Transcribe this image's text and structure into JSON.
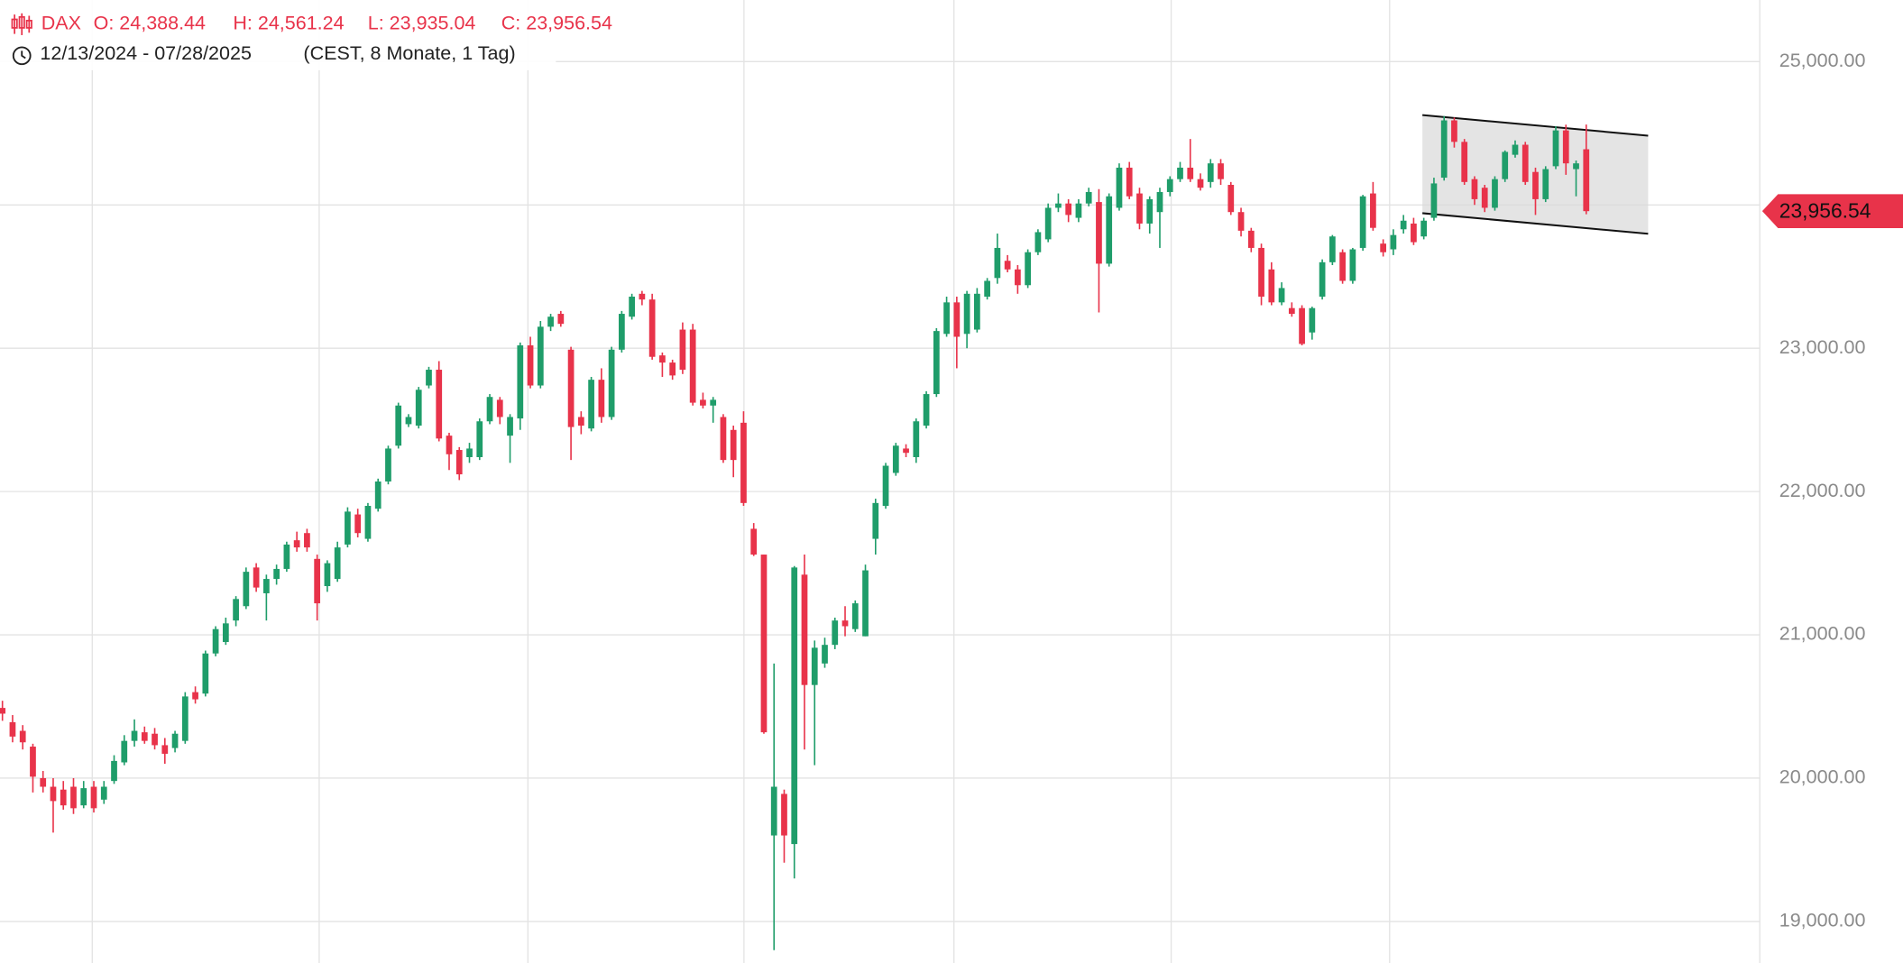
{
  "chart_data": {
    "type": "candlestick",
    "symbol": "DAX",
    "ohlc_labels": [
      "O: 24,388.44",
      "H: 24,561.24",
      "L: 23,935.04",
      "C: 23,956.54"
    ],
    "range_label": "12/13/2024 - 07/28/2025",
    "range_note": "(CEST, 8 Monate, 1 Tag)",
    "last_price": {
      "value": 23956.54,
      "label": "23,956.54"
    },
    "up_color": "#1f9d6a",
    "down_color": "#e8334a",
    "grid": true,
    "ylim": [
      18710,
      25430
    ],
    "yticks": [
      {
        "value": 19000,
        "label": "19,000.00"
      },
      {
        "value": 20000,
        "label": "20,000.00"
      },
      {
        "value": 21000,
        "label": "21,000.00"
      },
      {
        "value": 22000,
        "label": "22,000.00"
      },
      {
        "value": 23000,
        "label": "23,000.00"
      },
      {
        "value": 24000,
        "label": "24,000.00"
      },
      {
        "value": 25000,
        "label": "25,000.00"
      }
    ],
    "open": [
      20490,
      20390,
      20330,
      20220,
      20000,
      19940,
      19920,
      19940,
      19810,
      19940,
      19850,
      19980,
      20110,
      20260,
      20320,
      20310,
      20230,
      20210,
      20260,
      20600,
      20590,
      20870,
      20950,
      21100,
      21200,
      21470,
      21290,
      21390,
      21460,
      21660,
      21710,
      21530,
      21340,
      21390,
      21630,
      21840,
      21670,
      21880,
      22070,
      22320,
      22470,
      22460,
      22740,
      22850,
      22390,
      22290,
      22240,
      22240,
      22490,
      22640,
      22390,
      22510,
      23020,
      22740,
      23150,
      23240,
      22990,
      22520,
      22440,
      22780,
      22520,
      22990,
      23220,
      23380,
      23340,
      22950,
      22900,
      23130,
      23130,
      22640,
      22600,
      22520,
      22430,
      22480,
      21740,
      21560,
      19600,
      19890,
      19540,
      21420,
      20650,
      20800,
      20930,
      21100,
      21040,
      20990,
      21670,
      21900,
      22130,
      22300,
      22240,
      22460,
      22680,
      23100,
      23320,
      23100,
      23130,
      23360,
      23490,
      23610,
      23550,
      23440,
      23670,
      23760,
      23980,
      24010,
      23910,
      24010,
      24020,
      23590,
      23980,
      24260,
      24080,
      23870,
      23950,
      24090,
      24180,
      24260,
      24180,
      24160,
      24290,
      24140,
      23950,
      23820,
      23700,
      23550,
      23320,
      23280,
      23280,
      23110,
      23360,
      23600,
      23670,
      23470,
      23700,
      24080,
      23730,
      23690,
      23830,
      23870,
      23780,
      23910,
      24190,
      24590,
      24440,
      24180,
      24120,
      23980,
      24180,
      24350,
      24420,
      24230,
      24040,
      24270,
      24520,
      24250,
      24388.44
    ],
    "high": [
      20540,
      20440,
      20370,
      20240,
      20050,
      20000,
      19980,
      20000,
      19980,
      19980,
      19980,
      20160,
      20300,
      20410,
      20360,
      20350,
      20280,
      20330,
      20600,
      20640,
      20890,
      21060,
      21120,
      21270,
      21470,
      21500,
      21420,
      21490,
      21650,
      21720,
      21740,
      21560,
      21520,
      21650,
      21890,
      21880,
      21920,
      22090,
      22320,
      22620,
      22540,
      22730,
      22870,
      22910,
      22410,
      22310,
      22340,
      22510,
      22680,
      22660,
      22540,
      23040,
      23080,
      23190,
      23240,
      23260,
      23010,
      22560,
      22800,
      22860,
      23010,
      23260,
      23380,
      23400,
      23380,
      22970,
      22920,
      23180,
      23170,
      22690,
      22660,
      22540,
      22460,
      22560,
      21780,
      21560,
      20800,
      19920,
      21480,
      21560,
      20960,
      20980,
      21120,
      21200,
      21240,
      21490,
      21950,
      22200,
      22340,
      22330,
      22510,
      22700,
      23140,
      23360,
      23360,
      23400,
      23420,
      23490,
      23800,
      23650,
      23580,
      23690,
      23830,
      24010,
      24080,
      24040,
      24040,
      24120,
      24110,
      24080,
      24290,
      24300,
      24120,
      24060,
      24120,
      24200,
      24300,
      24460,
      24220,
      24320,
      24320,
      24160,
      23980,
      23840,
      23730,
      23600,
      23460,
      23320,
      23300,
      23290,
      23620,
      23790,
      23690,
      23700,
      24070,
      24160,
      23760,
      23830,
      23930,
      23910,
      23910,
      24190,
      24620,
      24610,
      24460,
      24200,
      24140,
      24200,
      24380,
      24450,
      24440,
      24260,
      24270,
      24550,
      24560,
      24310,
      24561.24
    ],
    "low": [
      20400,
      20250,
      20200,
      19900,
      19900,
      19620,
      19780,
      19750,
      19790,
      19760,
      19820,
      19960,
      20090,
      20220,
      20240,
      20200,
      20100,
      20180,
      20240,
      20520,
      20570,
      20850,
      20930,
      21060,
      21180,
      21300,
      21100,
      21350,
      21440,
      21580,
      21580,
      21100,
      21300,
      21370,
      21610,
      21680,
      21650,
      21860,
      22050,
      22300,
      22450,
      22440,
      22720,
      22350,
      22150,
      22080,
      22200,
      22220,
      22470,
      22470,
      22200,
      22430,
      22720,
      22720,
      23120,
      23150,
      22220,
      22400,
      22420,
      22480,
      22500,
      22970,
      23200,
      23300,
      22920,
      22800,
      22780,
      22820,
      22600,
      22580,
      22480,
      22200,
      22100,
      21900,
      21550,
      20310,
      18800,
      19410,
      19300,
      20200,
      20090,
      20770,
      20900,
      20990,
      21020,
      20990,
      21560,
      21880,
      22110,
      22240,
      22200,
      22440,
      22660,
      23080,
      22860,
      23000,
      23110,
      23340,
      23450,
      23530,
      23380,
      23420,
      23650,
      23740,
      23950,
      23880,
      23880,
      23990,
      23250,
      23570,
      23960,
      24040,
      23830,
      23800,
      23700,
      24060,
      24160,
      24160,
      24100,
      24120,
      24140,
      23930,
      23780,
      23670,
      23300,
      23300,
      23300,
      23220,
      23020,
      23060,
      23340,
      23580,
      23450,
      23450,
      23680,
      23820,
      23640,
      23650,
      23800,
      23720,
      23760,
      23890,
      24170,
      24400,
      24140,
      24000,
      23950,
      23960,
      24160,
      24330,
      24140,
      23930,
      24020,
      24250,
      24210,
      24060,
      23935.04
    ],
    "close": [
      20450,
      20290,
      20250,
      20010,
      19940,
      19840,
      19810,
      19790,
      19930,
      19790,
      19940,
      20120,
      20260,
      20330,
      20260,
      20230,
      20170,
      20310,
      20570,
      20550,
      20870,
      21040,
      21080,
      21250,
      21440,
      21330,
      21390,
      21460,
      21630,
      21610,
      21610,
      21220,
      21500,
      21610,
      21860,
      21710,
      21900,
      22070,
      22300,
      22600,
      22520,
      22710,
      22850,
      22370,
      22260,
      22120,
      22300,
      22490,
      22660,
      22520,
      22520,
      23020,
      22740,
      23150,
      23220,
      23170,
      22450,
      22460,
      22780,
      22520,
      22990,
      23240,
      23360,
      23340,
      22940,
      22900,
      22810,
      22850,
      22620,
      22600,
      22640,
      22220,
      22220,
      21920,
      21560,
      20320,
      19940,
      19600,
      21470,
      20650,
      20910,
      20930,
      21100,
      21060,
      21220,
      21450,
      21920,
      22180,
      22320,
      22270,
      22490,
      22680,
      23120,
      23320,
      23080,
      23380,
      23380,
      23470,
      23700,
      23550,
      23440,
      23670,
      23810,
      23980,
      24010,
      23930,
      24010,
      24090,
      23590,
      24060,
      24260,
      24060,
      23870,
      24040,
      24090,
      24180,
      24260,
      24180,
      24120,
      24290,
      24180,
      23950,
      23820,
      23700,
      23360,
      23320,
      23420,
      23240,
      23030,
      23280,
      23600,
      23780,
      23470,
      23690,
      24060,
      23840,
      23670,
      23790,
      23890,
      23740,
      23890,
      24150,
      24590,
      24440,
      24160,
      24040,
      23980,
      24180,
      24370,
      24420,
      24160,
      24040,
      24250,
      24520,
      24290,
      24290,
      23956.54
    ]
  }
}
